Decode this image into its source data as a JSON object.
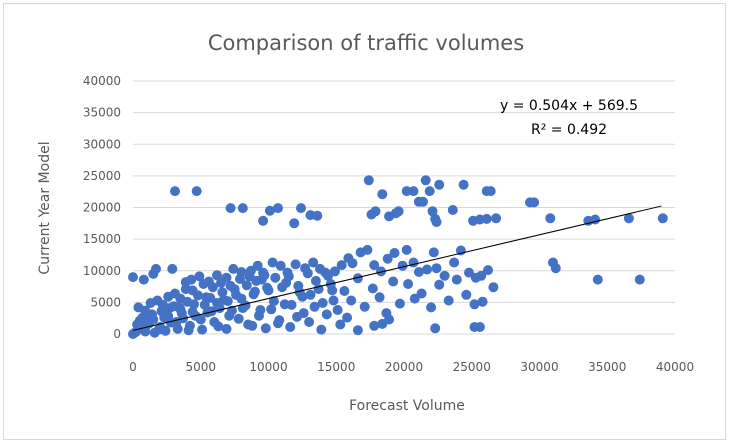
{
  "chart_data": {
    "type": "scatter",
    "title": "Comparison of traffic volumes",
    "xlabel": "Forecast Volume",
    "ylabel": "Current Year Model",
    "xlim": [
      0,
      40000
    ],
    "ylim": [
      0,
      40000
    ],
    "xticks": [
      "0",
      "5000",
      "10000",
      "15000",
      "20000",
      "25000",
      "30000",
      "35000",
      "40000"
    ],
    "yticks": [
      "0",
      "5000",
      "10000",
      "15000",
      "20000",
      "25000",
      "30000",
      "35000",
      "40000"
    ],
    "grid": "horizontal",
    "legend": "none",
    "marker_color": "#4472c4",
    "trendline": {
      "type": "linear",
      "slope": 0.504,
      "intercept": 569.5,
      "x_range": [
        0,
        39000
      ],
      "equation_label": "y = 0.504x + 569.5",
      "r2_label": "R² = 0.492",
      "color": "#000000"
    },
    "series": [
      {
        "points": [
          [
            3100,
            22600
          ],
          [
            4700,
            22600
          ],
          [
            7200,
            19900
          ],
          [
            8100,
            19900
          ],
          [
            9600,
            17900
          ],
          [
            10100,
            19500
          ],
          [
            10700,
            19900
          ],
          [
            11900,
            17500
          ],
          [
            12400,
            19900
          ],
          [
            13100,
            18800
          ],
          [
            13600,
            18700
          ],
          [
            17400,
            24300
          ],
          [
            17600,
            18900
          ],
          [
            17900,
            19400
          ],
          [
            18400,
            22100
          ],
          [
            18900,
            18600
          ],
          [
            19400,
            19100
          ],
          [
            19600,
            19400
          ],
          [
            20200,
            22600
          ],
          [
            20700,
            22600
          ],
          [
            21100,
            20900
          ],
          [
            21400,
            20900
          ],
          [
            21600,
            24300
          ],
          [
            21900,
            22600
          ],
          [
            22100,
            19400
          ],
          [
            22300,
            18200
          ],
          [
            22400,
            17700
          ],
          [
            22600,
            23600
          ],
          [
            23600,
            19600
          ],
          [
            24400,
            23600
          ],
          [
            25100,
            17900
          ],
          [
            25600,
            18100
          ],
          [
            26100,
            22600
          ],
          [
            26400,
            22600
          ],
          [
            26100,
            18200
          ],
          [
            26800,
            18300
          ],
          [
            29300,
            20800
          ],
          [
            29600,
            20800
          ],
          [
            30800,
            18300
          ],
          [
            33600,
            17900
          ],
          [
            34100,
            18100
          ],
          [
            36600,
            18300
          ],
          [
            39100,
            18300
          ],
          [
            0,
            9000
          ],
          [
            800,
            8600
          ],
          [
            1500,
            9500
          ],
          [
            1700,
            10300
          ],
          [
            2900,
            10300
          ],
          [
            3400,
            4200
          ],
          [
            3900,
            8200
          ],
          [
            4300,
            8600
          ],
          [
            4900,
            9100
          ],
          [
            5600,
            8300
          ],
          [
            6200,
            9300
          ],
          [
            6900,
            8900
          ],
          [
            7400,
            10300
          ],
          [
            8000,
            9800
          ],
          [
            8700,
            10000
          ],
          [
            9200,
            10800
          ],
          [
            9700,
            9300
          ],
          [
            10300,
            11300
          ],
          [
            10900,
            10800
          ],
          [
            11400,
            9700
          ],
          [
            12000,
            11000
          ],
          [
            12700,
            10400
          ],
          [
            13300,
            11300
          ],
          [
            13800,
            10300
          ],
          [
            14400,
            9200
          ],
          [
            14900,
            9900
          ],
          [
            15400,
            10900
          ],
          [
            15900,
            12000
          ],
          [
            16200,
            11200
          ],
          [
            16800,
            12900
          ],
          [
            17300,
            13300
          ],
          [
            17800,
            10900
          ],
          [
            18300,
            9900
          ],
          [
            18800,
            11900
          ],
          [
            19300,
            12800
          ],
          [
            19900,
            10800
          ],
          [
            20200,
            13300
          ],
          [
            20700,
            11300
          ],
          [
            21100,
            9800
          ],
          [
            21700,
            10200
          ],
          [
            22200,
            12900
          ],
          [
            22400,
            10400
          ],
          [
            23000,
            9200
          ],
          [
            23700,
            11300
          ],
          [
            24200,
            13200
          ],
          [
            24800,
            9700
          ],
          [
            25300,
            8900
          ],
          [
            25700,
            9200
          ],
          [
            26200,
            10100
          ],
          [
            26600,
            7400
          ],
          [
            31000,
            11300
          ],
          [
            31200,
            10400
          ],
          [
            34300,
            8600
          ],
          [
            37400,
            8600
          ],
          [
            500,
            2100
          ],
          [
            1000,
            1400
          ],
          [
            1400,
            3100
          ],
          [
            1900,
            700
          ],
          [
            2300,
            2600
          ],
          [
            2700,
            4100
          ],
          [
            3200,
            1900
          ],
          [
            3600,
            3300
          ],
          [
            4100,
            600
          ],
          [
            4500,
            4700
          ],
          [
            5000,
            2300
          ],
          [
            5400,
            5800
          ],
          [
            5800,
            3600
          ],
          [
            6300,
            1200
          ],
          [
            6700,
            5400
          ],
          [
            7100,
            2900
          ],
          [
            7600,
            6200
          ],
          [
            8100,
            4100
          ],
          [
            8500,
            1500
          ],
          [
            9000,
            6700
          ],
          [
            9400,
            3800
          ],
          [
            9900,
            7300
          ],
          [
            10400,
            5200
          ],
          [
            10800,
            2200
          ],
          [
            11300,
            8100
          ],
          [
            11700,
            4600
          ],
          [
            12200,
            7600
          ],
          [
            12600,
            3300
          ],
          [
            13100,
            6200
          ],
          [
            13500,
            8400
          ],
          [
            14000,
            4900
          ],
          [
            14600,
            7900
          ],
          [
            15100,
            3800
          ],
          [
            15600,
            6800
          ],
          [
            16100,
            5300
          ],
          [
            16600,
            8800
          ],
          [
            17100,
            4300
          ],
          [
            17700,
            7200
          ],
          [
            18200,
            5800
          ],
          [
            18700,
            3300
          ],
          [
            19200,
            8300
          ],
          [
            19700,
            4800
          ],
          [
            20300,
            7900
          ],
          [
            20800,
            5600
          ],
          [
            21300,
            6400
          ],
          [
            22000,
            4200
          ],
          [
            22600,
            7800
          ],
          [
            23300,
            5300
          ],
          [
            23900,
            8600
          ],
          [
            24600,
            6200
          ],
          [
            25200,
            4700
          ],
          [
            25800,
            5100
          ],
          [
            16600,
            600
          ],
          [
            17800,
            1300
          ],
          [
            18400,
            1600
          ],
          [
            18900,
            2300
          ],
          [
            22300,
            900
          ],
          [
            25200,
            1100
          ],
          [
            25600,
            1100
          ],
          [
            200,
            300
          ],
          [
            600,
            900
          ],
          [
            900,
            400
          ],
          [
            1200,
            1700
          ],
          [
            1600,
            200
          ],
          [
            2000,
            1100
          ],
          [
            2400,
            500
          ],
          [
            2800,
            1800
          ],
          [
            3300,
            800
          ],
          [
            3700,
            2500
          ],
          [
            4200,
            1300
          ],
          [
            4600,
            2900
          ],
          [
            5100,
            700
          ],
          [
            5500,
            3400
          ],
          [
            6000,
            1900
          ],
          [
            6400,
            4100
          ],
          [
            6900,
            800
          ],
          [
            7300,
            3700
          ],
          [
            7800,
            2400
          ],
          [
            8300,
            4500
          ],
          [
            8800,
            1300
          ],
          [
            9300,
            2900
          ],
          [
            9800,
            900
          ],
          [
            10200,
            3900
          ],
          [
            10700,
            1700
          ],
          [
            11200,
            4700
          ],
          [
            11600,
            1100
          ],
          [
            12100,
            2700
          ],
          [
            12500,
            5900
          ],
          [
            13000,
            1900
          ],
          [
            13400,
            4300
          ],
          [
            13900,
            700
          ],
          [
            14300,
            3100
          ],
          [
            14800,
            5300
          ],
          [
            15300,
            1500
          ],
          [
            15800,
            2600
          ],
          [
            0,
            0
          ],
          [
            300,
            1500
          ],
          [
            700,
            2600
          ],
          [
            1100,
            3200
          ],
          [
            1500,
            2300
          ],
          [
            2100,
            3600
          ],
          [
            2600,
            2800
          ],
          [
            3000,
            4400
          ],
          [
            3500,
            3900
          ],
          [
            4000,
            5100
          ],
          [
            4400,
            3500
          ],
          [
            4800,
            6100
          ],
          [
            5300,
            4600
          ],
          [
            5700,
            5700
          ],
          [
            6200,
            4900
          ],
          [
            6600,
            6600
          ],
          [
            7000,
            5200
          ],
          [
            7500,
            7100
          ],
          [
            8000,
            5600
          ],
          [
            8400,
            7700
          ],
          [
            8900,
            6300
          ],
          [
            9500,
            8600
          ],
          [
            10000,
            6900
          ],
          [
            10500,
            8900
          ],
          [
            11000,
            7400
          ],
          [
            11500,
            9100
          ],
          [
            12300,
            6600
          ],
          [
            12900,
            9600
          ],
          [
            13700,
            7100
          ],
          [
            14200,
            9700
          ],
          [
            14700,
            6900
          ],
          [
            400,
            4200
          ],
          [
            900,
            3700
          ],
          [
            1300,
            4900
          ],
          [
            1800,
            5300
          ],
          [
            2200,
            4600
          ],
          [
            2600,
            5900
          ],
          [
            3100,
            6400
          ],
          [
            3500,
            5600
          ],
          [
            3900,
            7100
          ],
          [
            4400,
            6900
          ],
          [
            5200,
            7900
          ],
          [
            5900,
            7400
          ],
          [
            6500,
            8100
          ],
          [
            7200,
            7600
          ],
          [
            7900,
            8700
          ],
          [
            8600,
            9100
          ],
          [
            9100,
            8400
          ],
          [
            9600,
            9700
          ]
        ]
      }
    ]
  }
}
